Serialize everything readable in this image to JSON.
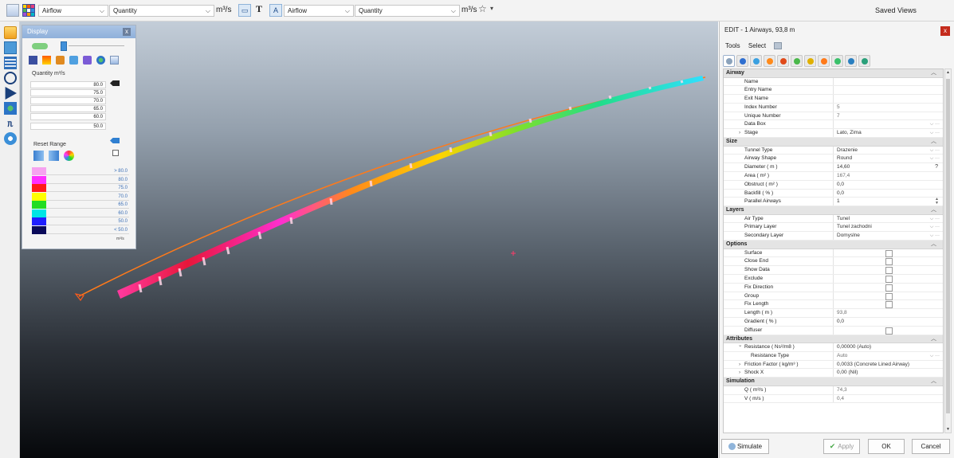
{
  "toolbar": {
    "left_select": {
      "value": "Airflow"
    },
    "left_quantity": {
      "value": "Quantity"
    },
    "left_unit": "m³/s",
    "text_button": "T",
    "right_select": {
      "value": "Airflow"
    },
    "right_quantity": {
      "value": "Quantity"
    },
    "right_unit": "m³/s",
    "star_icon": "star-outline-icon",
    "saved_views": "Saved Views"
  },
  "display": {
    "title": "Display",
    "close_label": "x",
    "quantity_label": "Quantity m³/s",
    "quantity_rows": [
      "80.0",
      "75.0",
      "70.0",
      "65.0",
      "60.0",
      "50.0"
    ],
    "reset_range": "Reset Range",
    "legend": [
      {
        "label": "> 80.0",
        "color": "#f6a3f0"
      },
      {
        "label": "80.0",
        "color": "#ff2fff"
      },
      {
        "label": "75.0",
        "color": "#ff1a1a"
      },
      {
        "label": "70.0",
        "color": "#ffff00"
      },
      {
        "label": "65.0",
        "color": "#22dd22"
      },
      {
        "label": "60.0",
        "color": "#00e5e5"
      },
      {
        "label": "50.0",
        "color": "#1f1fff"
      },
      {
        "label": "< 50.0",
        "color": "#0a0a5a"
      }
    ],
    "legend_unit": "m³/s"
  },
  "edit": {
    "title": "EDIT - 1 Airways, 93,8 m",
    "close_label": "x",
    "menu": {
      "tools": "Tools",
      "select": "Select"
    },
    "sections": {
      "airway": "Airway",
      "size": "Size",
      "layers": "Layers",
      "options": "Options",
      "attributes": "Attributes",
      "simulation": "Simulation"
    },
    "airway": {
      "name": {
        "label": "Name",
        "value": ""
      },
      "entry_name": {
        "label": "Entry Name",
        "value": ""
      },
      "exit_name": {
        "label": "Exit Name",
        "value": ""
      },
      "index_number": {
        "label": "Index Number",
        "value": "5"
      },
      "unique_number": {
        "label": "Unique Number",
        "value": "7"
      },
      "data_box": {
        "label": "Data Box",
        "value": ""
      },
      "stage": {
        "label": "Stage",
        "value": "Lato, Zima"
      }
    },
    "size": {
      "tunnel_type": {
        "label": "Tunnel Type",
        "value": "Drazenie"
      },
      "airway_shape": {
        "label": "Airway Shape",
        "value": "Round"
      },
      "diameter": {
        "label": "Diameter ( m )",
        "value": "14,60"
      },
      "area": {
        "label": "Area ( m² )",
        "value": "167,4"
      },
      "obstruct": {
        "label": "Obstruct ( m² )",
        "value": "0,0"
      },
      "backfill": {
        "label": "Backfill ( % )",
        "value": "0,0"
      },
      "parallel": {
        "label": "Parallel Airways",
        "value": "1"
      }
    },
    "layers": {
      "air_type": {
        "label": "Air Type",
        "value": "Tunel"
      },
      "primary": {
        "label": "Primary Layer",
        "value": "Tunel zachodni"
      },
      "secondary": {
        "label": "Secondary Layer",
        "value": "Domyslne"
      }
    },
    "options": {
      "surface": "Surface",
      "close_end": "Close End",
      "show_data": "Show Data",
      "exclude": "Exclude",
      "fix_direction": "Fix Direction",
      "group": "Group",
      "fix_length": "Fix Length",
      "length": {
        "label": "Length ( m )",
        "value": "93,8"
      },
      "gradient": {
        "label": "Gradient ( % )",
        "value": "0,0"
      },
      "diffuser": "Diffuser"
    },
    "attributes": {
      "resistance": {
        "label": "Resistance ( Ns²/m8 )",
        "value": "0,00000 (Auto)"
      },
      "resistance_type": {
        "label": "Resistance Type",
        "value": "Auto"
      },
      "friction": {
        "label": "Friction Factor ( kg/m³ )",
        "value": "0,0033 (Concrete Lined Airway)"
      },
      "shock": {
        "label": "Shock X",
        "value": "0,00 (Nil)"
      }
    },
    "simulation": {
      "q": {
        "label": "Q ( m³/s )",
        "value": "74,3"
      },
      "v": {
        "label": "V ( m/s )",
        "value": "0,4"
      }
    },
    "buttons": {
      "simulate": "Simulate",
      "apply": "Apply",
      "ok": "OK",
      "cancel": "Cancel"
    }
  },
  "colors": {
    "accent": "#2f7fd1",
    "close_red": "#c42b1c",
    "airway_orange": "#ff7a1a"
  }
}
